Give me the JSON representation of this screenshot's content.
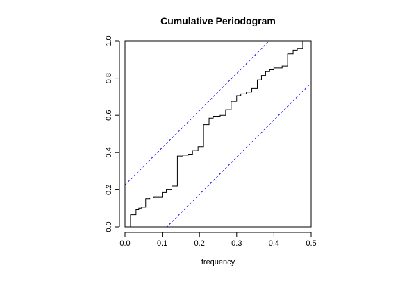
{
  "chart_data": {
    "type": "line",
    "title": "Cumulative Periodogram",
    "xlabel": "frequency",
    "ylabel": "",
    "xlim": [
      0,
      0.5
    ],
    "ylim": [
      0,
      1
    ],
    "x_ticks": [
      "0.0",
      "0.1",
      "0.2",
      "0.3",
      "0.4",
      "0.5"
    ],
    "y_ticks": [
      "0.0",
      "0.2",
      "0.4",
      "0.6",
      "0.8",
      "1.0"
    ],
    "grid": false,
    "series": [
      {
        "style": "step",
        "color": "#000000",
        "points": [
          [
            0.0,
            0.0
          ],
          [
            0.0148,
            0.0
          ],
          [
            0.0148,
            0.065
          ],
          [
            0.0296,
            0.065
          ],
          [
            0.0296,
            0.095
          ],
          [
            0.037,
            0.095
          ],
          [
            0.037,
            0.1
          ],
          [
            0.0444,
            0.1
          ],
          [
            0.0444,
            0.105
          ],
          [
            0.0555,
            0.105
          ],
          [
            0.0555,
            0.15
          ],
          [
            0.0666,
            0.15
          ],
          [
            0.0666,
            0.155
          ],
          [
            0.0777,
            0.155
          ],
          [
            0.0777,
            0.16
          ],
          [
            0.1,
            0.16
          ],
          [
            0.1,
            0.185
          ],
          [
            0.1111,
            0.185
          ],
          [
            0.1111,
            0.2
          ],
          [
            0.1259,
            0.2
          ],
          [
            0.1259,
            0.22
          ],
          [
            0.1407,
            0.22
          ],
          [
            0.1407,
            0.38
          ],
          [
            0.1555,
            0.38
          ],
          [
            0.1555,
            0.385
          ],
          [
            0.1703,
            0.385
          ],
          [
            0.1703,
            0.39
          ],
          [
            0.1814,
            0.39
          ],
          [
            0.1814,
            0.41
          ],
          [
            0.1962,
            0.41
          ],
          [
            0.1962,
            0.43
          ],
          [
            0.211,
            0.43
          ],
          [
            0.211,
            0.55
          ],
          [
            0.2258,
            0.55
          ],
          [
            0.2258,
            0.585
          ],
          [
            0.2369,
            0.585
          ],
          [
            0.2369,
            0.595
          ],
          [
            0.2555,
            0.595
          ],
          [
            0.2555,
            0.6
          ],
          [
            0.2703,
            0.6
          ],
          [
            0.2703,
            0.63
          ],
          [
            0.2851,
            0.63
          ],
          [
            0.2851,
            0.675
          ],
          [
            0.2999,
            0.675
          ],
          [
            0.2999,
            0.705
          ],
          [
            0.311,
            0.705
          ],
          [
            0.311,
            0.715
          ],
          [
            0.3258,
            0.715
          ],
          [
            0.3258,
            0.725
          ],
          [
            0.3406,
            0.725
          ],
          [
            0.3406,
            0.745
          ],
          [
            0.3554,
            0.745
          ],
          [
            0.3554,
            0.79
          ],
          [
            0.3665,
            0.79
          ],
          [
            0.3665,
            0.815
          ],
          [
            0.3776,
            0.815
          ],
          [
            0.3776,
            0.835
          ],
          [
            0.3887,
            0.835
          ],
          [
            0.3887,
            0.845
          ],
          [
            0.3998,
            0.845
          ],
          [
            0.3998,
            0.855
          ],
          [
            0.422,
            0.855
          ],
          [
            0.422,
            0.865
          ],
          [
            0.4368,
            0.865
          ],
          [
            0.4368,
            0.93
          ],
          [
            0.4516,
            0.93
          ],
          [
            0.4516,
            0.95
          ],
          [
            0.4627,
            0.95
          ],
          [
            0.4627,
            0.96
          ],
          [
            0.4775,
            0.96
          ],
          [
            0.4775,
            1.0
          ],
          [
            0.5,
            1.0
          ]
        ]
      },
      {
        "style": "dashed",
        "color": "#0000ff",
        "points": [
          [
            0.0,
            0.2255
          ],
          [
            0.5,
            1.2255
          ]
        ]
      },
      {
        "style": "dashed",
        "color": "#0000ff",
        "points": [
          [
            0.0,
            -0.2255
          ],
          [
            0.5,
            0.7745
          ]
        ]
      }
    ]
  }
}
